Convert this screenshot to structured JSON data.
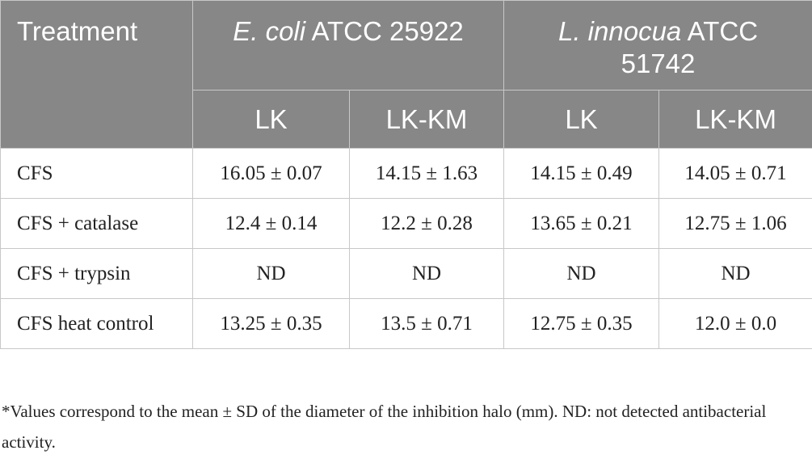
{
  "table": {
    "header": {
      "treatment": "Treatment",
      "groups": [
        {
          "species": "E. coli",
          "strain": "ATCC 25922"
        },
        {
          "species": "L. innocua",
          "strain": "ATCC 51742"
        }
      ],
      "subheaders": [
        "LK",
        "LK-KM",
        "LK",
        "LK-KM"
      ]
    },
    "rows": [
      [
        "CFS",
        "16.05 ± 0.07",
        "14.15 ± 1.63",
        "14.15 ± 0.49",
        "14.05 ± 0.71"
      ],
      [
        "CFS + catalase",
        "12.4 ± 0.14",
        "12.2 ± 0.28",
        "13.65 ± 0.21",
        "12.75 ± 1.06"
      ],
      [
        "CFS + trypsin",
        "ND",
        "ND",
        "ND",
        "ND"
      ],
      [
        "CFS heat control",
        "13.25 ± 0.35",
        "13.5 ± 0.71",
        "12.75 ± 0.35",
        "12.0 ± 0.0"
      ]
    ]
  },
  "footnote": "*Values correspond to the mean ± SD of the diameter of the inhibition halo (mm). ND: not detected antibacterial activity."
}
